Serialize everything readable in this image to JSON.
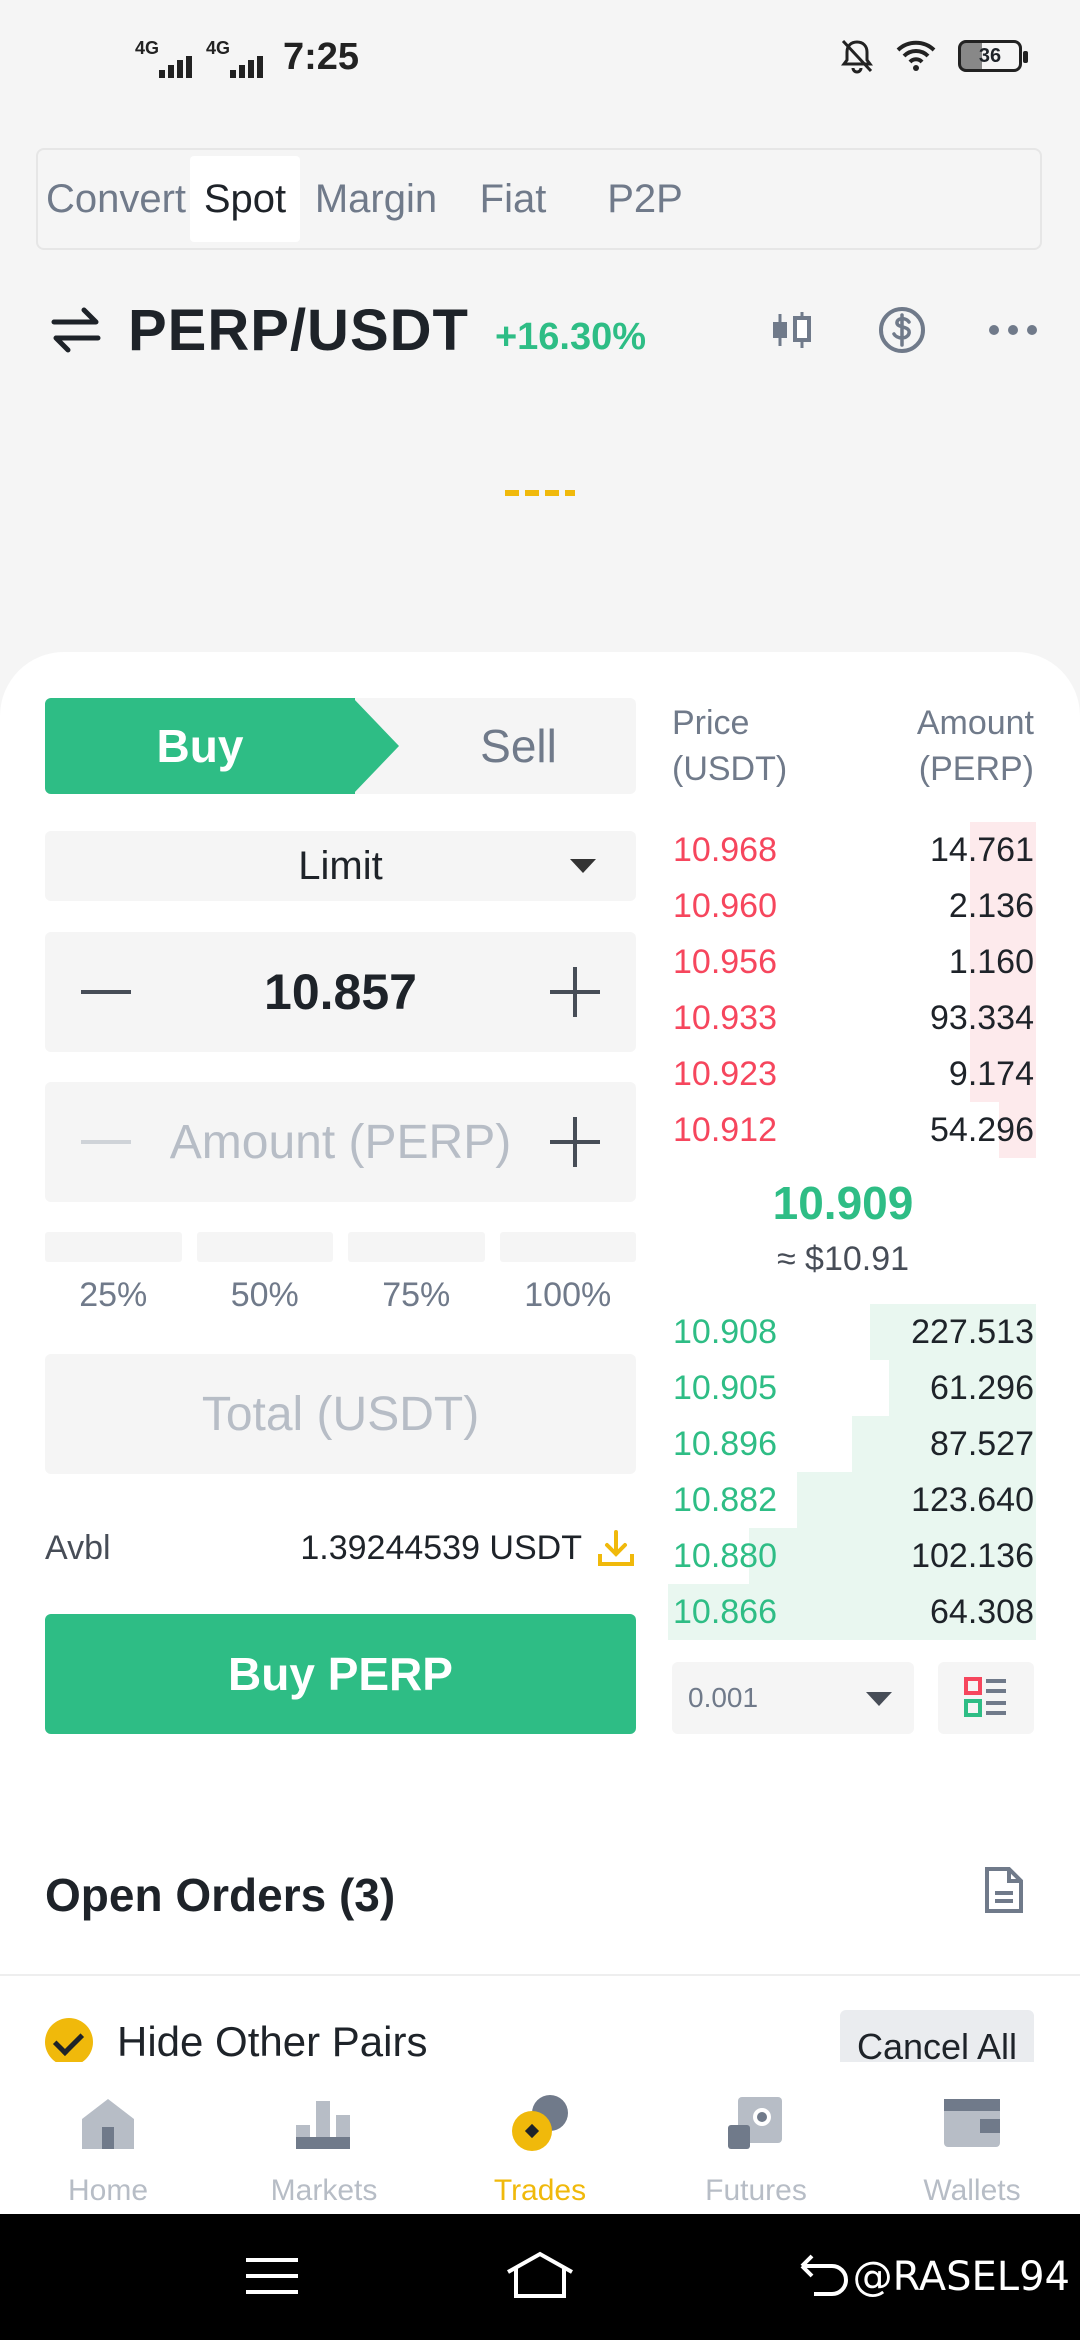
{
  "status_bar": {
    "time": "7:25",
    "network1": "4G",
    "network2": "4G",
    "battery": "36"
  },
  "top_tabs": [
    "Convert",
    "Spot",
    "Margin",
    "Fiat",
    "P2P"
  ],
  "active_tab": "Spot",
  "pair": {
    "name": "PERP/USDT",
    "change": "+16.30%"
  },
  "order_form": {
    "buy_label": "Buy",
    "sell_label": "Sell",
    "order_type": "Limit",
    "price": "10.857",
    "amount_placeholder": "Amount (PERP)",
    "percent_options": [
      "25%",
      "50%",
      "75%",
      "100%"
    ],
    "total_placeholder": "Total (USDT)",
    "avbl_label": "Avbl",
    "avbl_value": "1.39244539 USDT",
    "submit_label": "Buy PERP"
  },
  "order_book": {
    "price_header": "Price\n(USDT)",
    "price_header_l1": "Price",
    "price_header_l2": "(USDT)",
    "amount_header_l1": "Amount",
    "amount_header_l2": "(PERP)",
    "asks": [
      {
        "price": "10.968",
        "amount": "14.761",
        "depth": 0.18
      },
      {
        "price": "10.960",
        "amount": "2.136",
        "depth": 0.18
      },
      {
        "price": "10.956",
        "amount": "1.160",
        "depth": 0.18
      },
      {
        "price": "10.933",
        "amount": "93.334",
        "depth": 0.18
      },
      {
        "price": "10.923",
        "amount": "9.174",
        "depth": 0.18
      },
      {
        "price": "10.912",
        "amount": "54.296",
        "depth": 0.1
      }
    ],
    "last_price": "10.909",
    "last_price_usd": "≈ $10.91",
    "bids": [
      {
        "price": "10.908",
        "amount": "227.513",
        "depth": 0.45
      },
      {
        "price": "10.905",
        "amount": "61.296",
        "depth": 0.4
      },
      {
        "price": "10.896",
        "amount": "87.527",
        "depth": 0.5
      },
      {
        "price": "10.882",
        "amount": "123.640",
        "depth": 0.65
      },
      {
        "price": "10.880",
        "amount": "102.136",
        "depth": 0.78
      },
      {
        "price": "10.866",
        "amount": "64.308",
        "depth": 1.0
      }
    ],
    "tick_size": "0.001"
  },
  "open_orders": {
    "title": "Open Orders (3)",
    "hide_other_pairs": "Hide Other Pairs",
    "cancel_all": "Cancel All"
  },
  "bottom_nav": [
    "Home",
    "Markets",
    "Trades",
    "Futures",
    "Wallets"
  ],
  "watermark": "@RASEL94",
  "colors": {
    "buy": "#2ebd85",
    "sell": "#f6465d",
    "accent": "#f0b90b"
  }
}
